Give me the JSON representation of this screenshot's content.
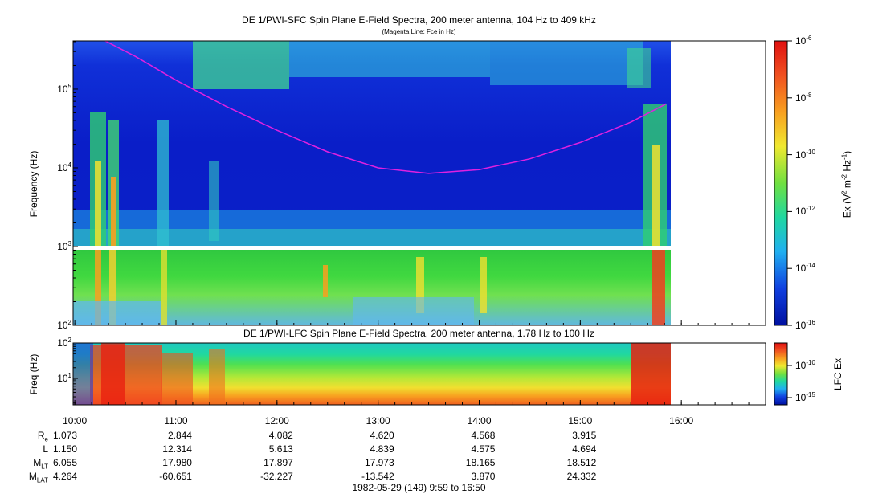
{
  "chart_data": [
    {
      "type": "heatmap",
      "title": "DE 1/PWI-SFC  Spin Plane E-Field Spectra, 200 meter antenna, 104 Hz to 409 kHz",
      "subtitle": "(Magenta Line: Fce in Hz)",
      "ylabel": "Frequency (Hz)",
      "ylim": [
        100,
        409000
      ],
      "yscale": "log",
      "y_ticks": [
        {
          "v": 100,
          "base": "10",
          "exp": "2"
        },
        {
          "v": 1000,
          "base": "10",
          "exp": "3"
        },
        {
          "v": 10000,
          "base": "10",
          "exp": "4"
        },
        {
          "v": 100000,
          "base": "10",
          "exp": "5"
        }
      ],
      "xlim_hours": [
        9.983,
        16.833
      ],
      "data_end_hour": 15.9,
      "colorbar": {
        "label_parts": [
          "Ex (V",
          "2",
          " m",
          "-2",
          " Hz",
          "-1",
          ")"
        ],
        "range": [
          1e-16,
          1e-06
        ],
        "ticks": [
          {
            "base": "10",
            "exp": "-6"
          },
          {
            "base": "10",
            "exp": "-8"
          },
          {
            "base": "10",
            "exp": "-10"
          },
          {
            "base": "10",
            "exp": "-12"
          },
          {
            "base": "10",
            "exp": "-14"
          },
          {
            "base": "10",
            "exp": "-16"
          }
        ]
      },
      "series": [
        {
          "name": "Fce",
          "color": "#e020e0",
          "x_hours": [
            10.3,
            10.6,
            11.0,
            11.5,
            12.0,
            12.5,
            13.0,
            13.5,
            14.0,
            14.5,
            15.0,
            15.5,
            15.85
          ],
          "y_hz": [
            409000,
            260000,
            130000,
            60000,
            30000,
            16000,
            10000,
            8500,
            9500,
            13000,
            21000,
            38000,
            65000
          ]
        }
      ]
    },
    {
      "type": "heatmap",
      "title": "DE 1/PWI-LFC  Spin Plane E-Field Spectra, 200 meter antenna, 1.78 Hz to 100 Hz",
      "ylabel": "Freq (Hz)",
      "ylim": [
        1.78,
        100
      ],
      "yscale": "log",
      "y_ticks": [
        {
          "v": 10,
          "base": "10",
          "exp": "1"
        },
        {
          "v": 100,
          "base": "10",
          "exp": "2"
        }
      ],
      "colorbar": {
        "label": "LFC Ex",
        "ticks": [
          {
            "base": "10",
            "exp": "-10"
          },
          {
            "base": "10",
            "exp": "-15"
          }
        ]
      }
    }
  ],
  "x_axis": {
    "ticks": [
      "10:00",
      "11:00",
      "12:00",
      "13:00",
      "14:00",
      "15:00",
      "16:00"
    ],
    "tick_hours": [
      10,
      11,
      12,
      13,
      14,
      15,
      16
    ]
  },
  "ephemeris": {
    "labels": [
      {
        "main": "R",
        "sub": "e"
      },
      {
        "main": "L",
        "sub": ""
      },
      {
        "main": "M",
        "sub": "LT"
      },
      {
        "main": "M",
        "sub": "LAT"
      }
    ],
    "rows": [
      [
        "1.073",
        "2.844",
        "4.082",
        "4.620",
        "4.568",
        "3.915"
      ],
      [
        "1.150",
        "12.314",
        "5.613",
        "4.839",
        "4.575",
        "4.694"
      ],
      [
        "6.055",
        "17.980",
        "17.897",
        "17.973",
        "18.165",
        "18.512"
      ],
      [
        "4.264",
        "-60.651",
        "-32.227",
        "-13.542",
        "3.870",
        "24.332"
      ]
    ]
  },
  "footer": "1982-05-29 (149) 9:59 to 16:50"
}
